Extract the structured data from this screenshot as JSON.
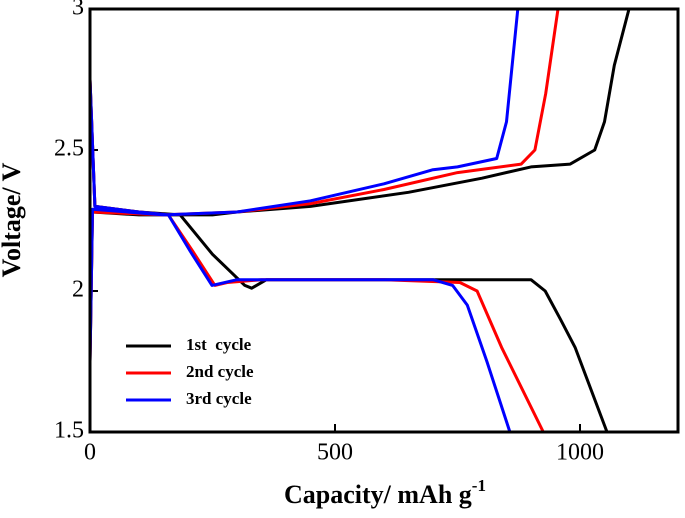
{
  "chart_data": {
    "type": "line",
    "x_label": "Capacity/ mAh g",
    "x_label_sup": "-1",
    "y_label": "Voltage/ V",
    "xlim": [
      0,
      1200
    ],
    "xticks": [
      0,
      500,
      1000
    ],
    "ylim": [
      1.5,
      3
    ],
    "yticks": [
      1.5,
      2,
      2.5,
      3
    ],
    "legend": "lower left",
    "series": [
      {
        "name": "1st  cycle",
        "color": "#000000",
        "x": [
          0,
          10,
          100,
          184,
          250,
          316,
          330,
          360,
          600,
          900,
          929,
          960,
          990,
          1055,
          null,
          0,
          5,
          100,
          250,
          300,
          450,
          650,
          800,
          900,
          980,
          1030,
          1050,
          1070,
          1100
        ],
        "values": [
          2.75,
          2.3,
          2.28,
          2.27,
          2.13,
          2.02,
          2.01,
          2.04,
          2.04,
          2.04,
          2.0,
          1.9,
          1.8,
          1.5,
          null,
          1.75,
          2.28,
          2.27,
          2.27,
          2.28,
          2.3,
          2.35,
          2.4,
          2.44,
          2.45,
          2.5,
          2.6,
          2.8,
          3.0
        ]
      },
      {
        "name": "2nd cycle",
        "color": "#ff0000",
        "x": [
          0,
          10,
          100,
          160,
          210,
          255,
          280,
          350,
          600,
          755,
          790,
          840,
          925,
          null,
          0,
          5,
          150,
          300,
          450,
          600,
          750,
          880,
          908,
          930,
          955
        ],
        "values": [
          2.75,
          2.3,
          2.28,
          2.27,
          2.14,
          2.02,
          2.03,
          2.04,
          2.04,
          2.03,
          2.0,
          1.8,
          1.5,
          null,
          1.75,
          2.28,
          2.27,
          2.28,
          2.31,
          2.36,
          2.42,
          2.45,
          2.5,
          2.7,
          3.0
        ]
      },
      {
        "name": "3rd cycle",
        "color": "#0000ff",
        "x": [
          0,
          10,
          100,
          160,
          205,
          249,
          300,
          500,
          700,
          740,
          770,
          810,
          857,
          null,
          0,
          5,
          150,
          300,
          450,
          600,
          700,
          750,
          830,
          850,
          873
        ],
        "values": [
          2.75,
          2.3,
          2.28,
          2.27,
          2.14,
          2.02,
          2.04,
          2.04,
          2.04,
          2.02,
          1.95,
          1.75,
          1.5,
          null,
          1.75,
          2.29,
          2.27,
          2.28,
          2.32,
          2.38,
          2.43,
          2.44,
          2.47,
          2.6,
          3.0
        ]
      }
    ]
  }
}
